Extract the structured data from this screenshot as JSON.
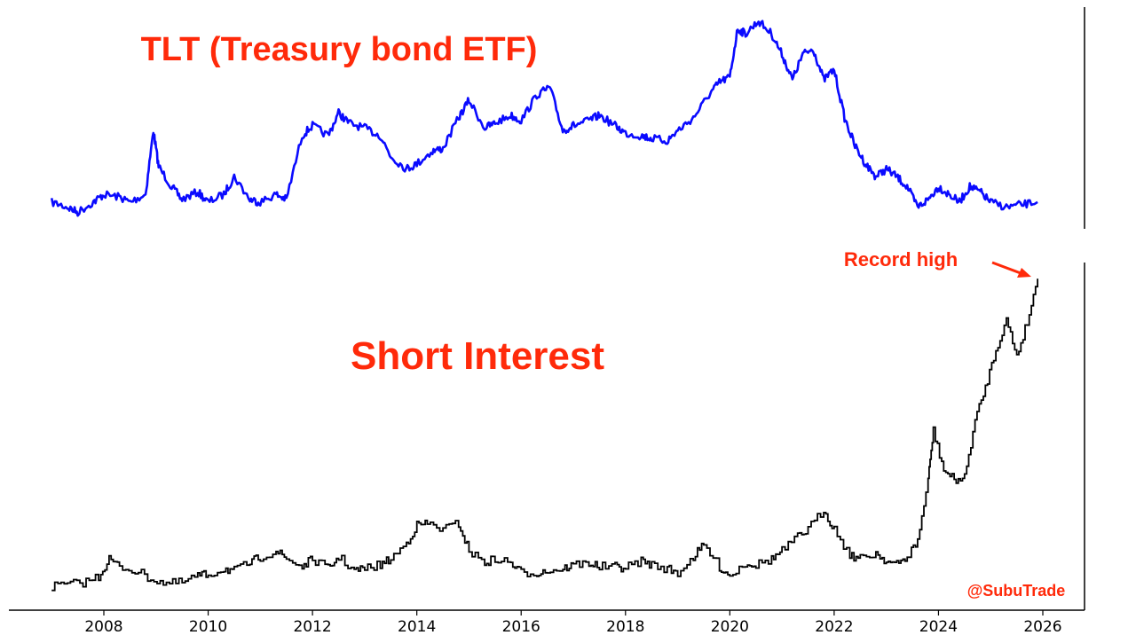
{
  "chart_data": [
    {
      "type": "line",
      "title": "TLT (Treasury bond ETF)",
      "xlabel": "",
      "ylabel": "",
      "xlim": [
        2007.0,
        2026.8
      ],
      "grid": false,
      "color": "#0a0aff",
      "series": [
        {
          "x": [
            2007.0,
            2007.3,
            2007.5,
            2007.8,
            2008.0,
            2008.3,
            2008.5,
            2008.8,
            2008.95,
            2009.05,
            2009.3,
            2009.5,
            2009.8,
            2010.0,
            2010.3,
            2010.5,
            2010.8,
            2011.0,
            2011.3,
            2011.5,
            2011.8,
            2012.0,
            2012.3,
            2012.5,
            2012.7,
            2013.0,
            2013.3,
            2013.5,
            2013.8,
            2014.0,
            2014.3,
            2014.5,
            2014.8,
            2015.0,
            2015.3,
            2015.5,
            2015.8,
            2016.0,
            2016.3,
            2016.55,
            2016.8,
            2017.0,
            2017.3,
            2017.5,
            2017.8,
            2018.0,
            2018.3,
            2018.5,
            2018.8,
            2019.0,
            2019.3,
            2019.6,
            2019.8,
            2020.0,
            2020.15,
            2020.3,
            2020.55,
            2020.8,
            2021.0,
            2021.2,
            2021.4,
            2021.6,
            2021.8,
            2022.0,
            2022.2,
            2022.4,
            2022.6,
            2022.8,
            2023.0,
            2023.2,
            2023.4,
            2023.6,
            2023.8,
            2024.0,
            2024.2,
            2024.4,
            2024.6,
            2024.8,
            2025.0,
            2025.3,
            2025.6,
            2025.9
          ],
          "y": [
            92,
            90,
            88,
            92,
            95,
            94,
            92,
            95,
            120,
            106,
            98,
            93,
            96,
            92,
            95,
            102,
            93,
            92,
            95,
            93,
            118,
            122,
            118,
            127,
            123,
            121,
            118,
            110,
            105,
            107,
            112,
            113,
            125,
            132,
            121,
            123,
            126,
            124,
            134,
            137,
            120,
            122,
            124,
            126,
            122,
            119,
            118,
            117,
            116,
            120,
            125,
            134,
            139,
            141,
            160,
            158,
            163,
            158,
            150,
            140,
            150,
            152,
            140,
            144,
            125,
            114,
            107,
            102,
            105,
            102,
            98,
            90,
            93,
            98,
            95,
            92,
            98,
            96,
            92,
            90,
            91,
            92
          ]
        }
      ]
    },
    {
      "type": "line",
      "title": "Short Interest",
      "xlabel": "",
      "ylabel": "",
      "xlim": [
        2007.0,
        2026.8
      ],
      "grid": false,
      "color": "#000000",
      "step": true,
      "series": [
        {
          "x": [
            2007.0,
            2007.3,
            2007.6,
            2007.9,
            2008.1,
            2008.3,
            2008.6,
            2008.9,
            2009.2,
            2009.5,
            2009.8,
            2010.0,
            2010.3,
            2010.5,
            2010.8,
            2011.0,
            2011.3,
            2011.5,
            2011.8,
            2012.0,
            2012.3,
            2012.5,
            2012.8,
            2013.0,
            2013.3,
            2013.5,
            2013.8,
            2014.0,
            2014.2,
            2014.5,
            2014.8,
            2015.0,
            2015.3,
            2015.5,
            2015.8,
            2016.0,
            2016.3,
            2016.5,
            2016.8,
            2017.0,
            2017.3,
            2017.5,
            2017.8,
            2018.0,
            2018.3,
            2018.5,
            2018.8,
            2019.0,
            2019.3,
            2019.5,
            2019.8,
            2020.0,
            2020.3,
            2020.5,
            2020.8,
            2021.0,
            2021.3,
            2021.5,
            2021.8,
            2022.0,
            2022.3,
            2022.5,
            2022.8,
            2023.0,
            2023.2,
            2023.4,
            2023.6,
            2023.8,
            2023.9,
            2024.1,
            2024.3,
            2024.5,
            2024.7,
            2024.9,
            2025.1,
            2025.3,
            2025.5,
            2025.7,
            2025.9
          ],
          "y": [
            0.6,
            0.8,
            1.0,
            1.6,
            3.4,
            2.6,
            2.2,
            1.4,
            0.9,
            1.0,
            1.7,
            1.8,
            2.4,
            2.2,
            3.0,
            3.6,
            4.2,
            3.4,
            2.6,
            3.4,
            2.4,
            3.6,
            2.2,
            2.4,
            2.8,
            3.4,
            5.0,
            6.8,
            7.0,
            6.4,
            7.0,
            4.2,
            3.0,
            3.4,
            3.0,
            2.0,
            2.0,
            2.2,
            2.4,
            2.8,
            3.0,
            2.6,
            2.6,
            2.5,
            3.2,
            2.8,
            2.4,
            2.0,
            3.6,
            4.8,
            2.6,
            1.7,
            3.0,
            2.8,
            3.4,
            4.2,
            5.6,
            6.4,
            8.4,
            6.4,
            3.8,
            3.4,
            4.0,
            3.2,
            2.8,
            3.6,
            5.2,
            11.4,
            16.4,
            12.4,
            11.4,
            11.6,
            17.4,
            20.8,
            24.6,
            27.6,
            24.0,
            27.4,
            31.8
          ]
        }
      ],
      "annotations": [
        {
          "text": "Record high",
          "x": 2025.9,
          "y": 31.8
        }
      ]
    }
  ],
  "x_ticks": [
    "2008",
    "2010",
    "2012",
    "2014",
    "2016",
    "2018",
    "2020",
    "2022",
    "2024",
    "2026"
  ],
  "watermark": "@SubuTrade",
  "colors": {
    "accent": "#ff2a0a",
    "tlt": "#0a0aff",
    "short": "#000000"
  }
}
